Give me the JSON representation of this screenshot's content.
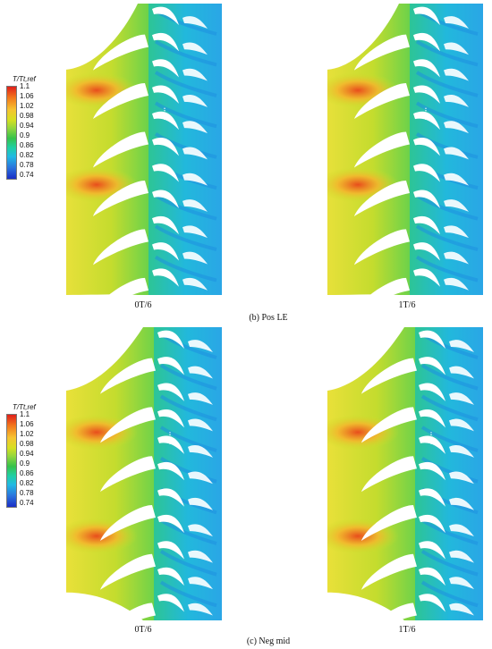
{
  "legend": {
    "title": "T/Tt,ref",
    "ticks": [
      "1.1",
      "1.06",
      "1.02",
      "0.98",
      "0.94",
      "0.9",
      "0.86",
      "0.82",
      "0.78",
      "0.74"
    ],
    "colors": [
      "#e0201b",
      "#f2781c",
      "#f6c431",
      "#d6e021",
      "#93d63d",
      "#36c24a",
      "#20cfa2",
      "#21b9e4",
      "#2b74dd",
      "#1b2fc6"
    ]
  },
  "section_b": {
    "caption": "(b) Pos LE",
    "left_label": "0T/6",
    "right_label": "1T/6"
  },
  "section_c": {
    "caption": "(c) Neg mid",
    "left_label": "0T/6",
    "right_label": "1T/6"
  },
  "colors": {
    "hot": "#e84d1c",
    "warm": "#f4b52c",
    "mid": "#c8df2a",
    "cool": "#2fc38a",
    "cold": "#1d8fe0",
    "coldest": "#2136c8"
  }
}
